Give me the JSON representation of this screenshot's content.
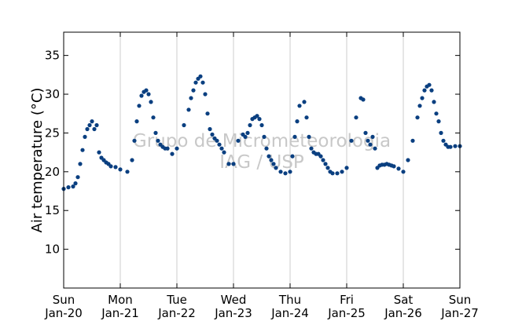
{
  "chart_data": {
    "type": "scatter",
    "title": "",
    "xlabel": "",
    "ylabel": "Air temperature (°C)",
    "xlim": [
      "2019-01-20T00:00",
      "2019-01-27T00:00"
    ],
    "ylim": [
      5,
      38
    ],
    "yticks": [
      10,
      15,
      20,
      25,
      30,
      35
    ],
    "xticks": [
      {
        "day": "Sun",
        "date": "Jan-20",
        "t": "2019-01-20T00:00"
      },
      {
        "day": "Mon",
        "date": "Jan-21",
        "t": "2019-01-21T00:00"
      },
      {
        "day": "Tue",
        "date": "Jan-22",
        "t": "2019-01-22T00:00"
      },
      {
        "day": "Wed",
        "date": "Jan-23",
        "t": "2019-01-23T00:00"
      },
      {
        "day": "Thu",
        "date": "Jan-24",
        "t": "2019-01-24T00:00"
      },
      {
        "day": "Fri",
        "date": "Jan-25",
        "t": "2019-01-25T00:00"
      },
      {
        "day": "Sat",
        "date": "Jan-26",
        "t": "2019-01-26T00:00"
      },
      {
        "day": "Sun",
        "date": "Jan-27",
        "t": "2019-01-27T00:00"
      }
    ],
    "grid": "vertical",
    "legend": "none",
    "marker_color": "#0a3f80",
    "watermark": [
      "Grupo de Micrometeorologia",
      "IAG / USP"
    ],
    "series": [
      {
        "x": [
          "2019-01-20T00:00",
          "2019-01-20T02:00",
          "2019-01-20T04:00",
          "2019-01-20T05:00",
          "2019-01-20T06:00",
          "2019-01-20T07:00",
          "2019-01-20T08:00",
          "2019-01-20T09:00",
          "2019-01-20T10:00",
          "2019-01-20T11:00",
          "2019-01-20T12:00",
          "2019-01-20T13:00",
          "2019-01-20T14:00",
          "2019-01-20T15:00",
          "2019-01-20T16:00",
          "2019-01-20T17:00",
          "2019-01-20T18:00",
          "2019-01-20T19:00",
          "2019-01-20T20:00",
          "2019-01-20T22:00",
          "2019-01-21T00:00",
          "2019-01-21T03:00",
          "2019-01-21T05:00",
          "2019-01-21T06:00",
          "2019-01-21T07:00",
          "2019-01-21T08:00",
          "2019-01-21T09:00",
          "2019-01-21T10:00",
          "2019-01-21T11:00",
          "2019-01-21T12:00",
          "2019-01-21T13:00",
          "2019-01-21T14:00",
          "2019-01-21T15:00",
          "2019-01-21T16:00",
          "2019-01-21T17:00",
          "2019-01-21T18:00",
          "2019-01-21T19:00",
          "2019-01-21T20:00",
          "2019-01-21T22:00",
          "2019-01-22T00:00",
          "2019-01-22T03:00",
          "2019-01-22T05:00",
          "2019-01-22T06:00",
          "2019-01-22T07:00",
          "2019-01-22T08:00",
          "2019-01-22T09:00",
          "2019-01-22T10:00",
          "2019-01-22T11:00",
          "2019-01-22T12:00",
          "2019-01-22T13:00",
          "2019-01-22T14:00",
          "2019-01-22T15:00",
          "2019-01-22T16:00",
          "2019-01-22T17:00",
          "2019-01-22T18:00",
          "2019-01-22T19:00",
          "2019-01-22T20:00",
          "2019-01-22T22:00",
          "2019-01-23T00:00",
          "2019-01-23T02:00",
          "2019-01-23T04:00",
          "2019-01-23T05:00",
          "2019-01-23T06:00",
          "2019-01-23T07:00",
          "2019-01-23T08:00",
          "2019-01-23T09:00",
          "2019-01-23T10:00",
          "2019-01-23T11:00",
          "2019-01-23T12:00",
          "2019-01-23T13:00",
          "2019-01-23T14:00",
          "2019-01-23T15:00",
          "2019-01-23T16:00",
          "2019-01-23T17:00",
          "2019-01-23T18:00",
          "2019-01-23T20:00",
          "2019-01-23T22:00",
          "2019-01-24T00:00",
          "2019-01-24T01:00",
          "2019-01-24T02:00",
          "2019-01-24T03:00",
          "2019-01-24T04:00",
          "2019-01-24T06:00",
          "2019-01-24T07:00",
          "2019-01-24T08:00",
          "2019-01-24T09:00",
          "2019-01-24T10:00",
          "2019-01-24T11:00",
          "2019-01-24T12:00",
          "2019-01-24T13:00",
          "2019-01-24T14:00",
          "2019-01-24T15:00",
          "2019-01-24T16:00",
          "2019-01-24T17:00",
          "2019-01-24T18:00",
          "2019-01-24T20:00",
          "2019-01-24T22:00",
          "2019-01-25T00:00",
          "2019-01-25T02:00",
          "2019-01-25T04:00",
          "2019-01-25T06:00",
          "2019-01-25T07:00",
          "2019-01-25T08:00",
          "2019-01-25T09:00",
          "2019-01-25T10:00",
          "2019-01-25T11:00",
          "2019-01-25T12:00",
          "2019-01-25T13:00",
          "2019-01-25T14:00",
          "2019-01-25T15:00",
          "2019-01-25T16:00",
          "2019-01-25T17:00",
          "2019-01-25T18:00",
          "2019-01-25T19:00",
          "2019-01-25T20:00",
          "2019-01-25T22:00",
          "2019-01-26T00:00",
          "2019-01-26T02:00",
          "2019-01-26T04:00",
          "2019-01-26T06:00",
          "2019-01-26T07:00",
          "2019-01-26T08:00",
          "2019-01-26T09:00",
          "2019-01-26T10:00",
          "2019-01-26T11:00",
          "2019-01-26T12:00",
          "2019-01-26T13:00",
          "2019-01-26T14:00",
          "2019-01-26T15:00",
          "2019-01-26T16:00",
          "2019-01-26T17:00",
          "2019-01-26T18:00",
          "2019-01-26T19:00",
          "2019-01-26T20:00",
          "2019-01-26T22:00",
          "2019-01-27T00:00"
        ],
        "y": [
          17.8,
          18.0,
          18.1,
          18.5,
          19.3,
          21.0,
          22.8,
          24.5,
          25.5,
          26.0,
          26.5,
          25.5,
          26.0,
          22.5,
          21.8,
          21.5,
          21.2,
          21.0,
          20.7,
          20.6,
          20.3,
          20.0,
          21.5,
          24.0,
          26.5,
          28.5,
          29.8,
          30.3,
          30.5,
          30.0,
          29.0,
          27.0,
          25.0,
          24.0,
          23.5,
          23.2,
          23.0,
          23.0,
          22.3,
          23.0,
          26.0,
          28.0,
          29.5,
          30.5,
          31.5,
          32.0,
          32.3,
          31.5,
          30.0,
          27.5,
          25.5,
          24.8,
          24.3,
          24.0,
          23.5,
          23.0,
          22.5,
          21.0,
          21.0,
          24.0,
          24.8,
          24.5,
          25.0,
          26.0,
          26.8,
          27.0,
          27.2,
          26.8,
          26.0,
          24.5,
          23.0,
          22.0,
          21.5,
          21.0,
          20.5,
          20.0,
          19.8,
          20.0,
          22.0,
          24.5,
          26.5,
          28.5,
          29.0,
          27.0,
          24.5,
          23.0,
          22.5,
          22.3,
          22.3,
          22.0,
          21.5,
          21.0,
          20.5,
          20.0,
          19.8,
          19.8,
          20.0,
          20.5,
          24.0,
          27.0,
          29.5,
          29.3,
          25.0,
          24.0,
          23.5,
          24.5,
          23.0,
          20.5,
          20.8,
          20.9,
          20.9,
          21.0,
          20.9,
          20.8,
          20.7,
          20.4,
          20.0,
          21.5,
          24.0,
          27.0,
          28.5,
          29.5,
          30.5,
          31.0,
          31.2,
          30.5,
          29.0,
          27.5,
          26.5,
          25.0,
          24.0,
          23.5,
          23.2,
          23.2,
          23.3,
          23.3
        ]
      }
    ]
  }
}
